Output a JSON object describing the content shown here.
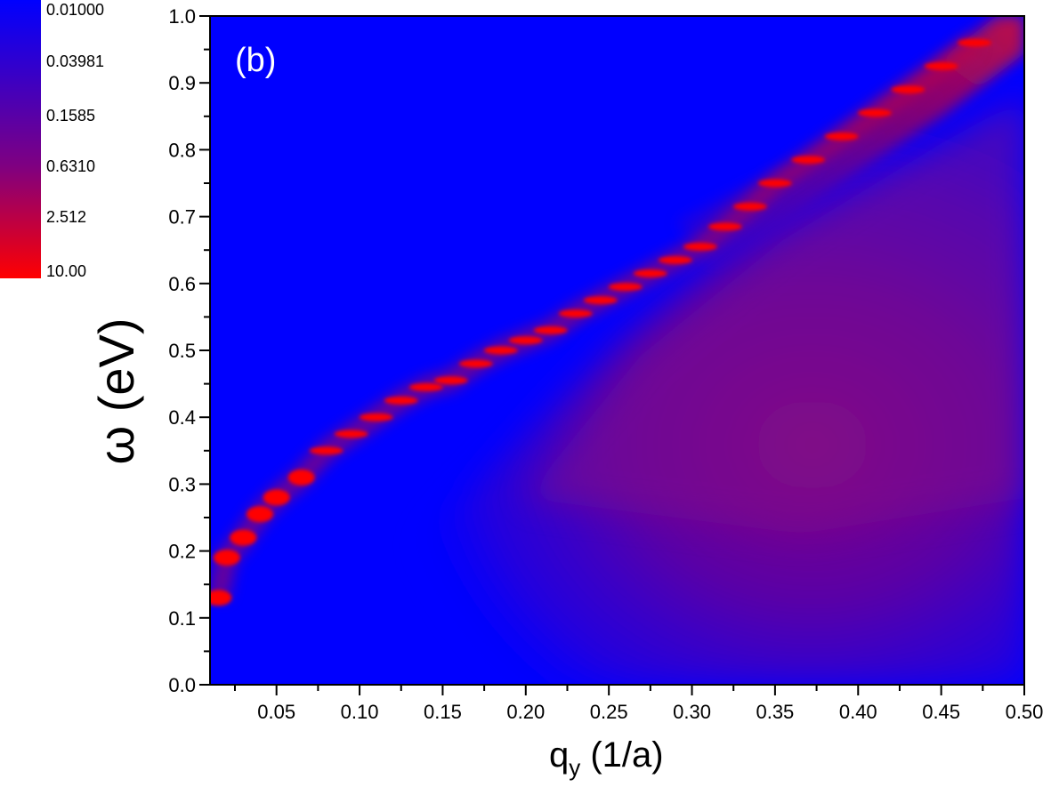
{
  "chart_data": {
    "type": "heatmap",
    "panel_label": "(b)",
    "xlabel": "q",
    "xlabel_subscript": "y",
    "xlabel_unit": " (1/a)",
    "ylabel": "ω (eV)",
    "xlim": [
      0.01,
      0.5
    ],
    "ylim": [
      0.0,
      1.0
    ],
    "x_ticks": [
      "0.05",
      "0.10",
      "0.15",
      "0.20",
      "0.25",
      "0.30",
      "0.35",
      "0.40",
      "0.45",
      "0.50"
    ],
    "x_tick_values": [
      0.05,
      0.1,
      0.15,
      0.2,
      0.25,
      0.3,
      0.35,
      0.4,
      0.45,
      0.5
    ],
    "y_ticks": [
      "0.0",
      "0.1",
      "0.2",
      "0.3",
      "0.4",
      "0.5",
      "0.6",
      "0.7",
      "0.8",
      "0.9",
      "1.0"
    ],
    "y_tick_values": [
      0.0,
      0.1,
      0.2,
      0.3,
      0.4,
      0.5,
      0.6,
      0.7,
      0.8,
      0.9,
      1.0
    ],
    "colorbar": {
      "scale": "log",
      "labels": [
        "0.01000",
        "0.03981",
        "0.1585",
        "0.6310",
        "2.512",
        "10.00"
      ],
      "colors": [
        "#0000ff",
        "#2a00d5",
        "#5500aa",
        "#800080",
        "#c00040",
        "#ff0000"
      ]
    },
    "plasmon_branch": {
      "q": [
        0.015,
        0.02,
        0.03,
        0.04,
        0.05,
        0.065,
        0.08,
        0.095,
        0.11,
        0.125,
        0.14,
        0.155,
        0.17,
        0.185,
        0.2,
        0.215,
        0.23,
        0.245,
        0.26,
        0.275,
        0.29,
        0.305,
        0.32,
        0.335,
        0.35,
        0.37,
        0.39,
        0.41,
        0.43,
        0.45,
        0.47
      ],
      "omega": [
        0.13,
        0.19,
        0.22,
        0.255,
        0.28,
        0.31,
        0.35,
        0.375,
        0.4,
        0.425,
        0.445,
        0.455,
        0.48,
        0.5,
        0.515,
        0.53,
        0.555,
        0.575,
        0.595,
        0.615,
        0.635,
        0.655,
        0.685,
        0.715,
        0.75,
        0.785,
        0.82,
        0.855,
        0.89,
        0.925,
        0.96
      ]
    },
    "continuum_color": "#800080",
    "background_color": "#0000ff"
  }
}
